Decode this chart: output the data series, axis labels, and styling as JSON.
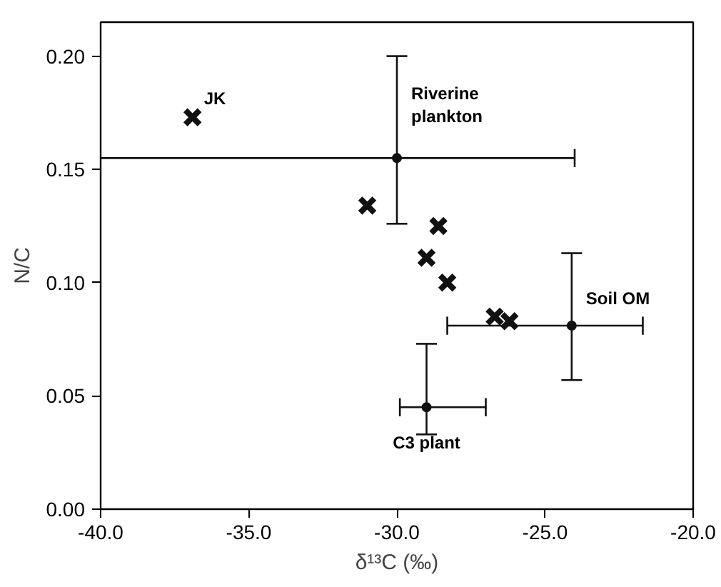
{
  "chart_data": {
    "type": "scatter",
    "xlabel": "δ¹³C (‰)",
    "ylabel": "N/C",
    "xlim": [
      -40,
      -20
    ],
    "ylim": [
      0,
      0.215
    ],
    "xticks": [
      {
        "value": -40,
        "label": "-40.0"
      },
      {
        "value": -35,
        "label": "-35.0"
      },
      {
        "value": -30,
        "label": "-30.0"
      },
      {
        "value": -25,
        "label": "-25.0"
      },
      {
        "value": -20,
        "label": "-20.0"
      }
    ],
    "yticks": [
      {
        "value": 0,
        "label": "0.00"
      },
      {
        "value": 0.05,
        "label": "0.05"
      },
      {
        "value": 0.1,
        "label": "0.10"
      },
      {
        "value": 0.15,
        "label": "0.15"
      },
      {
        "value": 0.2,
        "label": "0.20"
      }
    ],
    "grid": false,
    "series": [
      {
        "color": "#111111",
        "marker": "cross",
        "x": [
          -36.9,
          -31.0,
          -28.6,
          -29.0,
          -28.3,
          -26.7,
          -26.2
        ],
        "values": [
          0.173,
          0.134,
          0.125,
          0.111,
          0.1,
          0.085,
          0.083
        ]
      },
      {
        "color": "#111111",
        "marker": "circle",
        "x": [
          -30.0,
          -24.1,
          -29.0
        ],
        "values": [
          0.155,
          0.081,
          0.045
        ],
        "errors": [
          [
            0.126,
            0.2
          ],
          [
            0.057,
            0.113
          ],
          [
            0.033,
            0.073
          ]
        ],
        "xerrors": [
          [
            -40,
            -24.0
          ],
          [
            -28.3,
            -21.7
          ],
          [
            -29.9,
            -27.0
          ]
        ]
      }
    ],
    "annotations": [
      {
        "text": "JK",
        "x": -36.9,
        "y": 0.173
      },
      {
        "text": "Riverine\nplankton",
        "x": -30.0,
        "y": 0.155
      },
      {
        "text": "Soil OM",
        "x": -24.1,
        "y": 0.081
      },
      {
        "text": "C3 plant",
        "x": -29.0,
        "y": 0.045
      }
    ]
  }
}
